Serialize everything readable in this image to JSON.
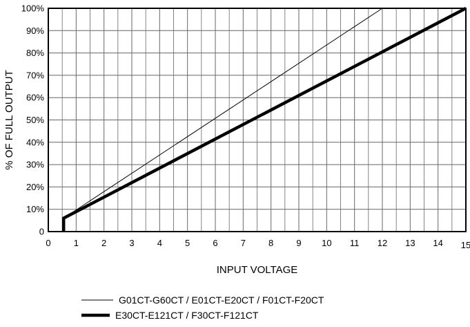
{
  "chart_data": {
    "type": "line",
    "title": "",
    "xlabel": "INPUT VOLTAGE",
    "ylabel": "% OF FULL OUTPUT",
    "xlim": [
      0,
      15
    ],
    "ylim": [
      0,
      100
    ],
    "x_ticks": [
      "0",
      "1",
      "2",
      "3",
      "4",
      "5",
      "6",
      "7",
      "8",
      "9",
      "10",
      "11",
      "12",
      "13",
      "14",
      "15"
    ],
    "y_ticks": [
      "0",
      "10%",
      "20%",
      "30%",
      "40%",
      "50%",
      "60%",
      "70%",
      "80%",
      "90%",
      "100%"
    ],
    "grid": true,
    "legend_position": "bottom-center",
    "series": [
      {
        "name": "G01CT-G60CT / E01CT-E20CT / F01CT-F20CT",
        "line_style": "thin",
        "color": "#000000",
        "points": [
          {
            "x": 0.55,
            "y": 0
          },
          {
            "x": 0.55,
            "y": 6
          },
          {
            "x": 12,
            "y": 100
          }
        ]
      },
      {
        "name": "E30CT-E121CT / F30CT-F121CT",
        "line_style": "thick",
        "color": "#000000",
        "points": [
          {
            "x": 0.55,
            "y": 0
          },
          {
            "x": 0.55,
            "y": 6
          },
          {
            "x": 15,
            "y": 100
          }
        ]
      }
    ]
  }
}
